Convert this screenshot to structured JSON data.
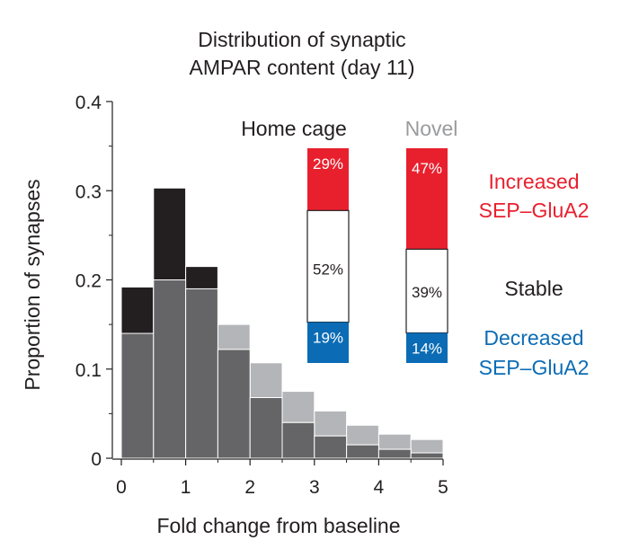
{
  "chart_data": {
    "type": "bar",
    "title_lines": [
      "Distribution of synaptic",
      "AMPAR content (day 11)"
    ],
    "xlabel": "Fold change from baseline",
    "ylabel": "Proportion of synapses",
    "xlim": [
      0,
      5
    ],
    "ylim": [
      0,
      0.4
    ],
    "xticks": [
      "0",
      "1",
      "2",
      "3",
      "4",
      "5"
    ],
    "yticks": [
      "0",
      "0.1",
      "0.2",
      "0.3",
      "0.4"
    ],
    "bin_edges": [
      0,
      0.5,
      1.0,
      1.5,
      2.0,
      2.5,
      3.0,
      3.5,
      4.0,
      4.5,
      5.0
    ],
    "histograms": [
      {
        "colors": {
          "fill": "#b3b5b8"
        },
        "values": [
          0.14,
          0.2,
          0.19,
          0.15,
          0.107,
          0.075,
          0.053,
          0.037,
          0.027,
          0.021
        ]
      },
      {
        "colors": {
          "fill": "#231f20"
        },
        "values": [
          0.192,
          0.303,
          0.215,
          0.122,
          0.068,
          0.04,
          0.025,
          0.015,
          0.01,
          0.006
        ]
      },
      {
        "colors": {
          "fill": "#656567"
        },
        "values": [
          0.14,
          0.2,
          0.19,
          0.122,
          0.068,
          0.04,
          0.025,
          0.015,
          0.01,
          0.006
        ]
      }
    ],
    "inset": {
      "groups": [
        {
          "name": "Home cage",
          "color": "#231f20",
          "segments": [
            {
              "key": "increased",
              "value": 29,
              "label": "29%"
            },
            {
              "key": "stable",
              "value": 52,
              "label": "52%"
            },
            {
              "key": "decreased",
              "value": 19,
              "label": "19%"
            }
          ]
        },
        {
          "name": "Novel",
          "color": "#9a9b9d",
          "segments": [
            {
              "key": "increased",
              "value": 47,
              "label": "47%"
            },
            {
              "key": "stable",
              "value": 39,
              "label": "39%"
            },
            {
              "key": "decreased",
              "value": 14,
              "label": "14%"
            }
          ]
        }
      ],
      "categories": [
        {
          "key": "increased",
          "lines": [
            "Increased",
            "SEP–GluA2"
          ],
          "color": "#e8202e"
        },
        {
          "key": "stable",
          "lines": [
            "Stable"
          ],
          "color": "#231f20"
        },
        {
          "key": "decreased",
          "lines": [
            "Decreased",
            "SEP–GluA2"
          ],
          "color": "#0b6cb5"
        }
      ]
    }
  }
}
